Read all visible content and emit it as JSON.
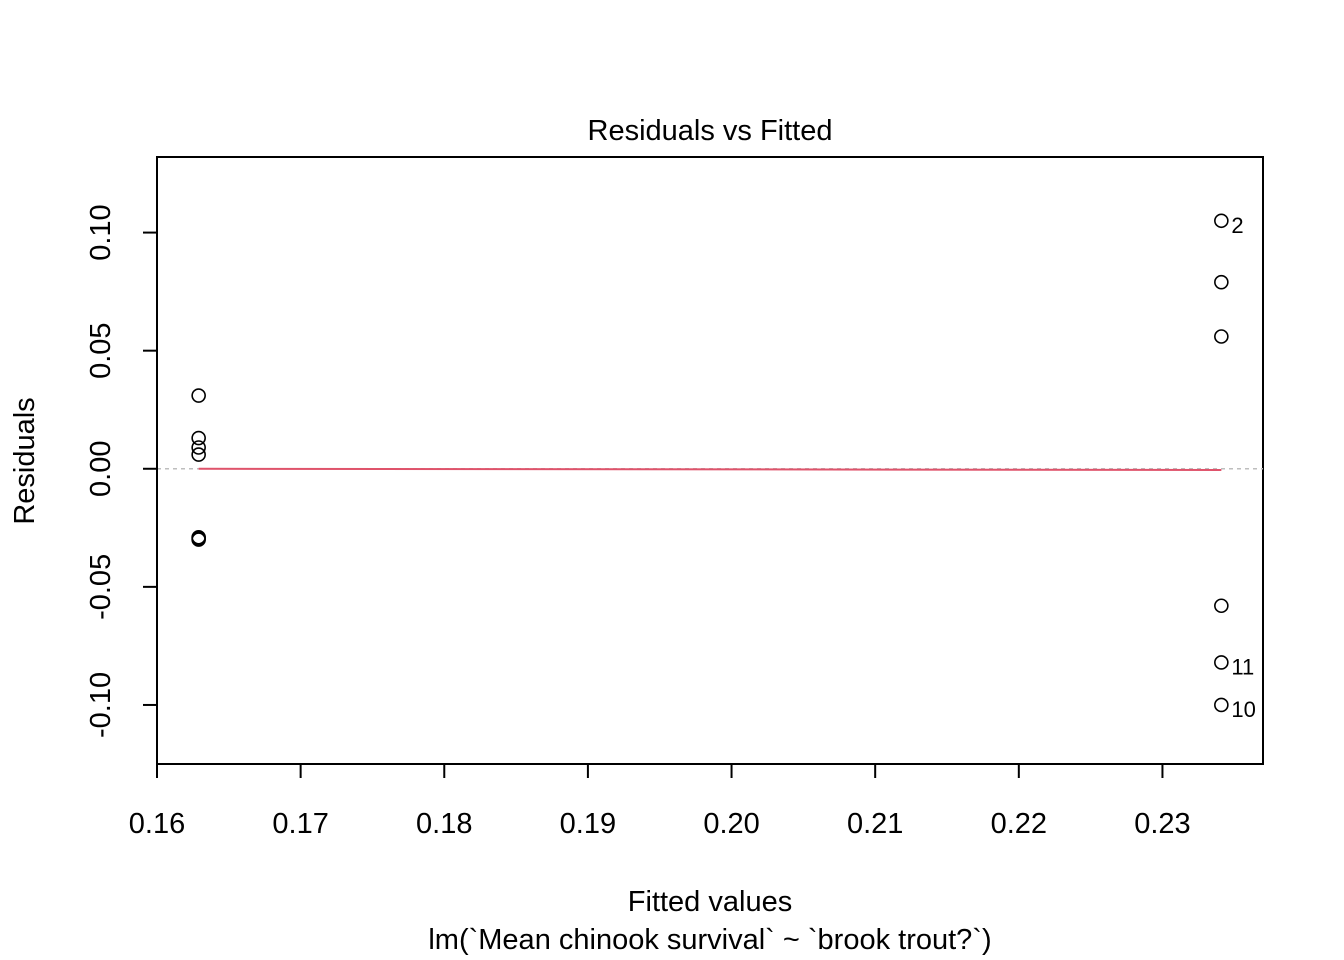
{
  "chart_data": {
    "type": "scatter",
    "title": "Residuals vs Fitted",
    "xlabel": "Fitted values",
    "subtitle": "lm(`Mean chinook survival` ~ `brook trout?`)",
    "ylabel": "Residuals",
    "xlim": [
      0.16,
      0.237
    ],
    "ylim": [
      -0.125,
      0.132
    ],
    "x_ticks": [
      0.16,
      0.17,
      0.18,
      0.19,
      0.2,
      0.21,
      0.22,
      0.23
    ],
    "x_tick_labels": [
      "0.16",
      "0.17",
      "0.18",
      "0.19",
      "0.20",
      "0.21",
      "0.22",
      "0.23"
    ],
    "y_ticks": [
      -0.1,
      -0.05,
      0.0,
      0.05,
      0.1
    ],
    "y_tick_labels": [
      "-0.10",
      "-0.05",
      "0.00",
      "0.05",
      "0.10"
    ],
    "grid": false,
    "reference_line": {
      "y": 0,
      "style": "dashed",
      "color": "#bebebe"
    },
    "smooth_line": {
      "color": "#df536b",
      "x": [
        0.1629,
        0.2341
      ],
      "y": [
        0.0,
        -0.0005
      ]
    },
    "points": [
      {
        "x": 0.1629,
        "y": 0.031,
        "label": ""
      },
      {
        "x": 0.1629,
        "y": 0.013,
        "label": ""
      },
      {
        "x": 0.1629,
        "y": 0.009,
        "label": ""
      },
      {
        "x": 0.1629,
        "y": 0.006,
        "label": ""
      },
      {
        "x": 0.1629,
        "y": -0.029,
        "label": ""
      },
      {
        "x": 0.1629,
        "y": -0.03,
        "label": ""
      },
      {
        "x": 0.1629,
        "y": -0.0295,
        "label": ""
      },
      {
        "x": 0.2341,
        "y": 0.105,
        "label": "2"
      },
      {
        "x": 0.2341,
        "y": 0.079,
        "label": ""
      },
      {
        "x": 0.2341,
        "y": 0.056,
        "label": ""
      },
      {
        "x": 0.2341,
        "y": -0.058,
        "label": ""
      },
      {
        "x": 0.2341,
        "y": -0.082,
        "label": "11"
      },
      {
        "x": 0.2341,
        "y": -0.1,
        "label": "10"
      }
    ]
  }
}
